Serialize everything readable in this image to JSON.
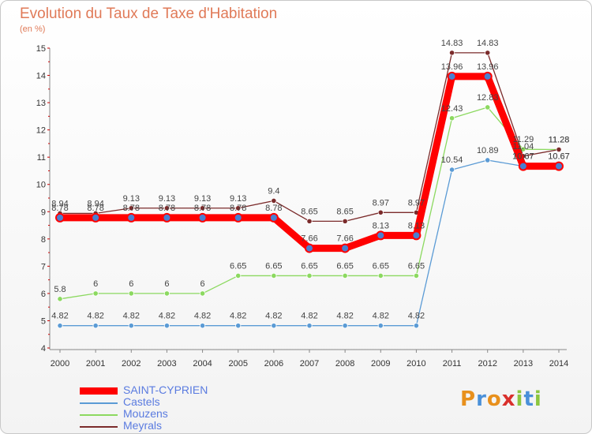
{
  "title": "Evolution du Taux de Taxe d'Habitation",
  "subtitle": "(en %)",
  "logo": {
    "text": "Proxiti"
  },
  "chart_data": {
    "type": "line",
    "title": "Evolution du Taux de Taxe d'Habitation",
    "ylabel": "(en %)",
    "x": [
      "2000",
      "2001",
      "2002",
      "2003",
      "2004",
      "2005",
      "2006",
      "2007",
      "2008",
      "2009",
      "2010",
      "2011",
      "2012",
      "2013",
      "2014"
    ],
    "ylim": [
      4,
      15
    ],
    "yticks": [
      4,
      5,
      6,
      7,
      8,
      9,
      10,
      11,
      12,
      13,
      14,
      15
    ],
    "grid": false,
    "legend_position": "bottom-left",
    "series": [
      {
        "name": "SAINT-CYPRIEN",
        "color": "#ff0000",
        "values": [
          8.78,
          8.78,
          8.78,
          8.78,
          8.78,
          8.78,
          8.78,
          7.66,
          7.66,
          8.13,
          8.13,
          13.96,
          13.96,
          10.67,
          10.67
        ],
        "labels": [
          "8.78",
          "8.78",
          "8.78",
          "8.78",
          "8.78",
          "8.78",
          "8.78",
          "7.66",
          "7.66",
          "8.13",
          "8.13",
          "13.96",
          "13.96",
          "10.67",
          "10.67"
        ]
      },
      {
        "name": "Castels",
        "color": "#5b9bd5",
        "values": [
          4.82,
          4.82,
          4.82,
          4.82,
          4.82,
          4.82,
          4.82,
          4.82,
          4.82,
          4.82,
          4.82,
          10.54,
          10.89,
          10.67,
          10.67
        ],
        "labels": [
          "4.82",
          "4.82",
          "4.82",
          "4.82",
          "4.82",
          "4.82",
          "4.82",
          "4.82",
          "4.82",
          "4.82",
          "4.82",
          "10.54",
          "10.89",
          "10.67",
          "10.67"
        ]
      },
      {
        "name": "Mouzens",
        "color": "#8cd960",
        "values": [
          5.8,
          6,
          6,
          6,
          6,
          6.65,
          6.65,
          6.65,
          6.65,
          6.65,
          6.65,
          12.43,
          12.83,
          11.29,
          11.28
        ],
        "labels": [
          "5.8",
          "6",
          "6",
          "6",
          "6",
          "6.65",
          "6.65",
          "6.65",
          "6.65",
          "6.65",
          "6.65",
          "12.43",
          "12.83",
          "11.29",
          "11.28"
        ]
      },
      {
        "name": "Meyrals",
        "color": "#7b2b2b",
        "values": [
          8.94,
          8.94,
          9.13,
          9.13,
          9.13,
          9.13,
          9.4,
          8.65,
          8.65,
          8.97,
          8.97,
          14.83,
          14.83,
          11.04,
          11.28
        ],
        "labels": [
          "8.94",
          "8.94",
          "9.13",
          "9.13",
          "9.13",
          "9.13",
          "9.4",
          "8.65",
          "8.65",
          "8.97",
          "8.97",
          "14.83",
          "14.83",
          "11.04",
          "11.28"
        ]
      }
    ]
  }
}
